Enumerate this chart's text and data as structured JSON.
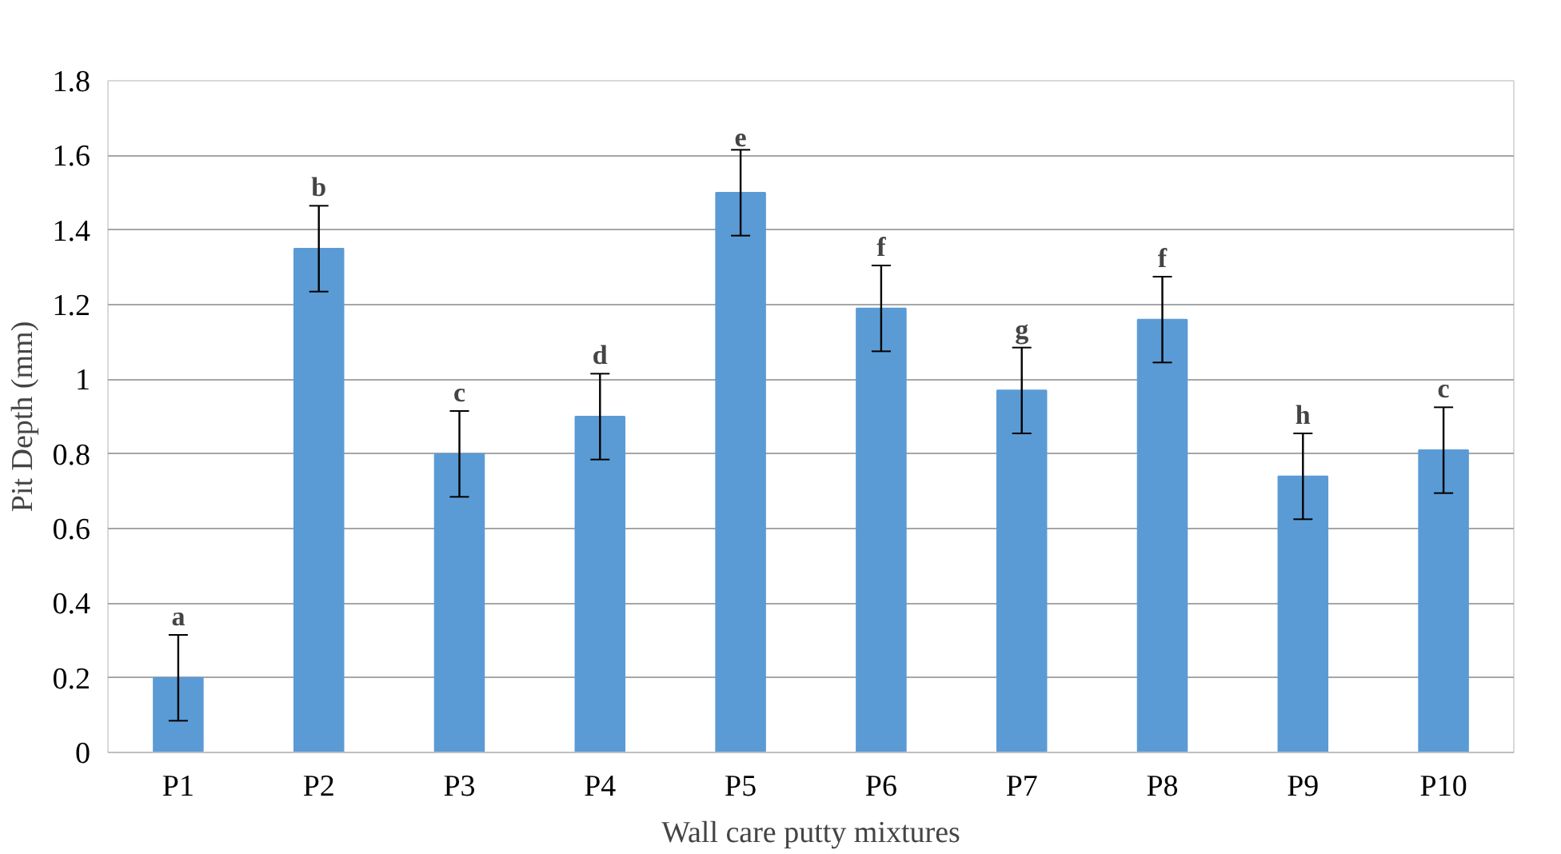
{
  "chart_data": {
    "type": "bar",
    "xlabel": "Wall care putty mixtures",
    "ylabel": "Pit Depth (mm)",
    "categories": [
      "P1",
      "P2",
      "P3",
      "P4",
      "P5",
      "P6",
      "P7",
      "P8",
      "P9",
      "P10"
    ],
    "values": [
      0.2,
      1.35,
      0.8,
      0.9,
      1.5,
      1.19,
      0.97,
      1.16,
      0.74,
      0.81
    ],
    "errors": [
      0.115,
      0.115,
      0.115,
      0.115,
      0.115,
      0.115,
      0.115,
      0.115,
      0.115,
      0.115
    ],
    "color": "#5b9bd5",
    "ylim": [
      0,
      1.8
    ],
    "yticks": [
      0,
      0.2,
      0.4,
      0.6,
      0.8,
      1,
      1.2,
      1.4,
      1.6,
      1.8
    ],
    "grid": "y",
    "annotations": [
      {
        "text": "a",
        "x": "P1",
        "y": 0.315
      },
      {
        "text": "b",
        "x": "P2",
        "y": 1.465
      },
      {
        "text": "c",
        "x": "P3",
        "y": 0.915
      },
      {
        "text": "d",
        "x": "P4",
        "y": 1.015
      },
      {
        "text": "e",
        "x": "P5",
        "y": 1.615
      },
      {
        "text": "f",
        "x": "P6",
        "y": 1.305
      },
      {
        "text": "g",
        "x": "P7",
        "y": 1.085
      },
      {
        "text": "f",
        "x": "P8",
        "y": 1.275
      },
      {
        "text": "h",
        "x": "P9",
        "y": 0.855
      },
      {
        "text": "c",
        "x": "P10",
        "y": 0.925
      }
    ]
  }
}
